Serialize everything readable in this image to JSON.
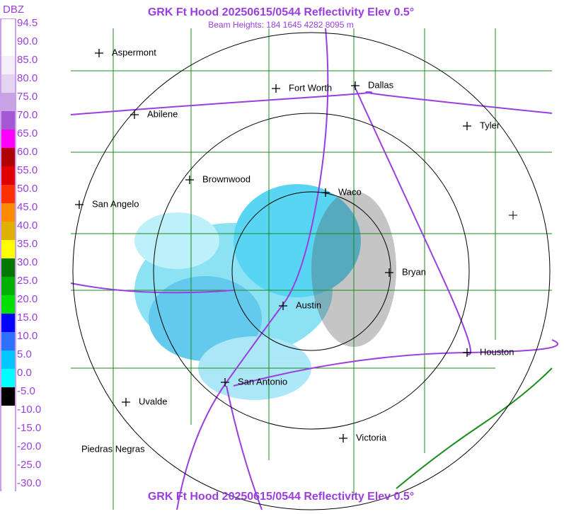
{
  "header": {
    "title": "GRK Ft Hood 20250615/0544 Reflectivity Elev 0.5°",
    "subtitle": "Beam Heights: 184 1645 4282 8095 m"
  },
  "scale": {
    "unit": "DBZ",
    "levels": [
      {
        "label": "94.5",
        "color": "#ffffff"
      },
      {
        "label": "90.0",
        "color": "#ffffff"
      },
      {
        "label": "85.0",
        "color": "#f4eefa"
      },
      {
        "label": "80.0",
        "color": "#e4d4f2"
      },
      {
        "label": "75.0",
        "color": "#c8a4e4"
      },
      {
        "label": "70.0",
        "color": "#a458d4"
      },
      {
        "label": "65.0",
        "color": "#ff00ff"
      },
      {
        "label": "60.0",
        "color": "#b00000"
      },
      {
        "label": "55.0",
        "color": "#e00000"
      },
      {
        "label": "50.0",
        "color": "#ff3000"
      },
      {
        "label": "45.0",
        "color": "#ff8c00"
      },
      {
        "label": "40.0",
        "color": "#e0b000"
      },
      {
        "label": "35.0",
        "color": "#ffff00"
      },
      {
        "label": "30.0",
        "color": "#007800"
      },
      {
        "label": "25.0",
        "color": "#00b000"
      },
      {
        "label": "20.0",
        "color": "#00e000"
      },
      {
        "label": "15.0",
        "color": "#0000ff"
      },
      {
        "label": "10.0",
        "color": "#3070ff"
      },
      {
        "label": "5.0",
        "color": "#00c8ff"
      },
      {
        "label": "0.0",
        "color": "#00ffff"
      },
      {
        "label": "-5.0",
        "color": "#000000"
      },
      {
        "label": "-10.0",
        "color": "#ffffff"
      },
      {
        "label": "-15.0",
        "color": "#ffffff"
      },
      {
        "label": "-20.0",
        "color": "#ffffff"
      },
      {
        "label": "-25.0",
        "color": "#ffffff"
      },
      {
        "label": "-30.0",
        "color": "#ffffff"
      }
    ]
  },
  "cities": [
    "Aspermont",
    "Fort Worth",
    "Dallas",
    "Abilene",
    "Tyler",
    "Brownwood",
    "Waco",
    "San Angelo",
    "Bryan",
    "Austin",
    "Houston",
    "San Antonio",
    "Uvalde",
    "Victoria",
    "Piedras Negras"
  ],
  "footer": {
    "title": "GRK Ft Hood 20250615/0544 Reflectivity Elev 0.5°"
  }
}
